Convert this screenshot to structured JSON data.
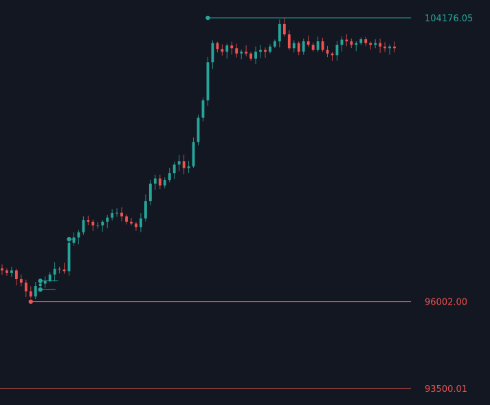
{
  "chart_data": {
    "type": "candlestick",
    "colors": {
      "background": "#131722",
      "up": "#26a69a",
      "down": "#ef5350",
      "wick_up": "#2f8f83",
      "wick_down": "#c9464b"
    },
    "grid": false,
    "price_lines": [
      {
        "label": "104176.05",
        "value": 104176.05,
        "color": "#26a69a",
        "from_index": 43
      },
      {
        "label": "96002.00",
        "value": 96002.0,
        "color": "#ef5350",
        "from_index": 6
      },
      {
        "label": "93500.01",
        "value": 93500.01,
        "color": "#ef5350",
        "from_index": 0
      }
    ],
    "markers": [
      {
        "index": 8,
        "value": 96350.0,
        "color": "#26a69a"
      },
      {
        "index": 8,
        "value": 96600.0,
        "color": "#26a69a"
      },
      {
        "index": 14,
        "value": 97800.0,
        "color": "#26a69a"
      },
      {
        "index": 6,
        "value": 96002.0,
        "color": "#ef5350"
      },
      {
        "index": 43,
        "value": 104176.05,
        "color": "#26a69a"
      }
    ],
    "closes": [
      96900,
      96830,
      96900,
      96650,
      96550,
      96300,
      96150,
      96450,
      96520,
      96600,
      96780,
      96950,
      96930,
      96880,
      97700,
      97850,
      98000,
      98350,
      98300,
      98200,
      98200,
      98300,
      98420,
      98550,
      98560,
      98460,
      98300,
      98250,
      98150,
      98400,
      98900,
      99400,
      99550,
      99350,
      99500,
      99700,
      99950,
      100050,
      99850,
      99900,
      100600,
      101300,
      101800,
      102900,
      103450,
      103280,
      103200,
      103380,
      103300,
      103150,
      103200,
      103150,
      103000,
      103200,
      103250,
      103200,
      103350,
      103500,
      104000,
      103700,
      103300,
      103450,
      103200,
      103500,
      103400,
      103250,
      103500,
      103250,
      103150,
      103100,
      103400,
      103550,
      103500,
      103400,
      103450,
      103560,
      103450,
      103400,
      103450,
      103350,
      103300,
      103350,
      103300
    ]
  }
}
